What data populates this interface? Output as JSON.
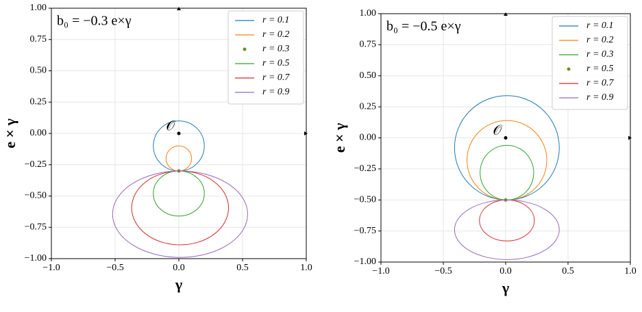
{
  "chart_data": [
    {
      "type": "line",
      "title": "b₀ = −0.3 e×γ",
      "x_label": "γ",
      "y_label": "e × γ",
      "origin": {
        "label": "𝒪",
        "point": [
          0,
          0
        ]
      },
      "xlim": [
        -1,
        1
      ],
      "ylim": [
        -1,
        1
      ],
      "xticks": [
        {
          "value": -1,
          "label": "−1.0"
        },
        {
          "value": -0.5,
          "label": "−0.5"
        },
        {
          "value": 0,
          "label": "0.0"
        },
        0.5,
        {
          "value": 1,
          "label": "1.0"
        }
      ],
      "yticks": [
        {
          "value": -1,
          "label": "−1.00"
        },
        {
          "value": -0.75,
          "label": "−0.75"
        },
        {
          "value": -0.5,
          "label": "−0.50"
        },
        {
          "value": -0.25,
          "label": "−0.25"
        },
        {
          "value": 0,
          "label": "0.00"
        },
        {
          "value": 0.25,
          "label": "0.25"
        },
        {
          "value": 0.5,
          "label": "0.50"
        },
        {
          "value": 0.75,
          "label": "0.75"
        },
        {
          "value": 1,
          "label": "1.00"
        }
      ],
      "grid": true,
      "legend": "upper right",
      "series": [
        {
          "name": "r = 0.1",
          "color": "#1f77b4",
          "center": [
            0,
            -0.1
          ],
          "radii": [
            0.2,
            0.2
          ]
        },
        {
          "name": "r = 0.2",
          "color": "#ff7f0e",
          "center": [
            0,
            -0.2
          ],
          "radii": [
            0.1,
            0.1
          ]
        },
        {
          "name": "r = 0.3",
          "color": "#6b8e23",
          "point": [
            0,
            -0.3
          ]
        },
        {
          "name": "r = 0.5",
          "color": "#2ca02c",
          "center": [
            0,
            -0.48
          ],
          "radii": [
            0.2,
            0.18
          ]
        },
        {
          "name": "r = 0.7",
          "color": "#d62728",
          "center": [
            0.01,
            -0.595
          ],
          "radii": [
            0.38,
            0.295
          ]
        },
        {
          "name": "r = 0.9",
          "color": "#9467bd",
          "center": [
            0.01,
            -0.645
          ],
          "radii": [
            0.53,
            0.345
          ]
        }
      ]
    },
    {
      "type": "line",
      "title": "b₀ = −0.5 e×γ",
      "x_label": "γ",
      "y_label": "e × γ",
      "origin": {
        "label": "𝒪",
        "point": [
          0,
          0
        ]
      },
      "xlim": [
        -1,
        1
      ],
      "ylim": [
        -1,
        1
      ],
      "xticks": [
        {
          "value": -1,
          "label": "−1.0"
        },
        {
          "value": -0.5,
          "label": "−0.5"
        },
        {
          "value": 0,
          "label": "0.0"
        },
        0.5,
        {
          "value": 1,
          "label": "1.0"
        }
      ],
      "yticks": [
        {
          "value": -1,
          "label": "−1.00"
        },
        {
          "value": -0.75,
          "label": "−0.75"
        },
        {
          "value": -0.5,
          "label": "−0.50"
        },
        {
          "value": -0.25,
          "label": "−0.25"
        },
        {
          "value": 0,
          "label": "0.00"
        },
        {
          "value": 0.25,
          "label": "0.25"
        },
        {
          "value": 0.5,
          "label": "0.50"
        },
        {
          "value": 0.75,
          "label": "0.75"
        },
        {
          "value": 1,
          "label": "1.00"
        }
      ],
      "grid": true,
      "legend": "upper right",
      "series": [
        {
          "name": "r = 0.1",
          "color": "#1f77b4",
          "center": [
            0.01,
            -0.08
          ],
          "radii": [
            0.42,
            0.42
          ]
        },
        {
          "name": "r = 0.2",
          "color": "#ff7f0e",
          "center": [
            0.01,
            -0.18
          ],
          "radii": [
            0.32,
            0.32
          ]
        },
        {
          "name": "r = 0.3",
          "color": "#2ca02c",
          "center": [
            0.01,
            -0.28
          ],
          "radii": [
            0.215,
            0.22
          ]
        },
        {
          "name": "r = 0.5",
          "color": "#6b8e23",
          "point": [
            0,
            -0.5
          ]
        },
        {
          "name": "r = 0.7",
          "color": "#d62728",
          "center": [
            0.01,
            -0.665
          ],
          "radii": [
            0.22,
            0.165
          ]
        },
        {
          "name": "r = 0.9",
          "color": "#9467bd",
          "center": [
            0.01,
            -0.74
          ],
          "radii": [
            0.42,
            0.24
          ]
        }
      ]
    }
  ]
}
